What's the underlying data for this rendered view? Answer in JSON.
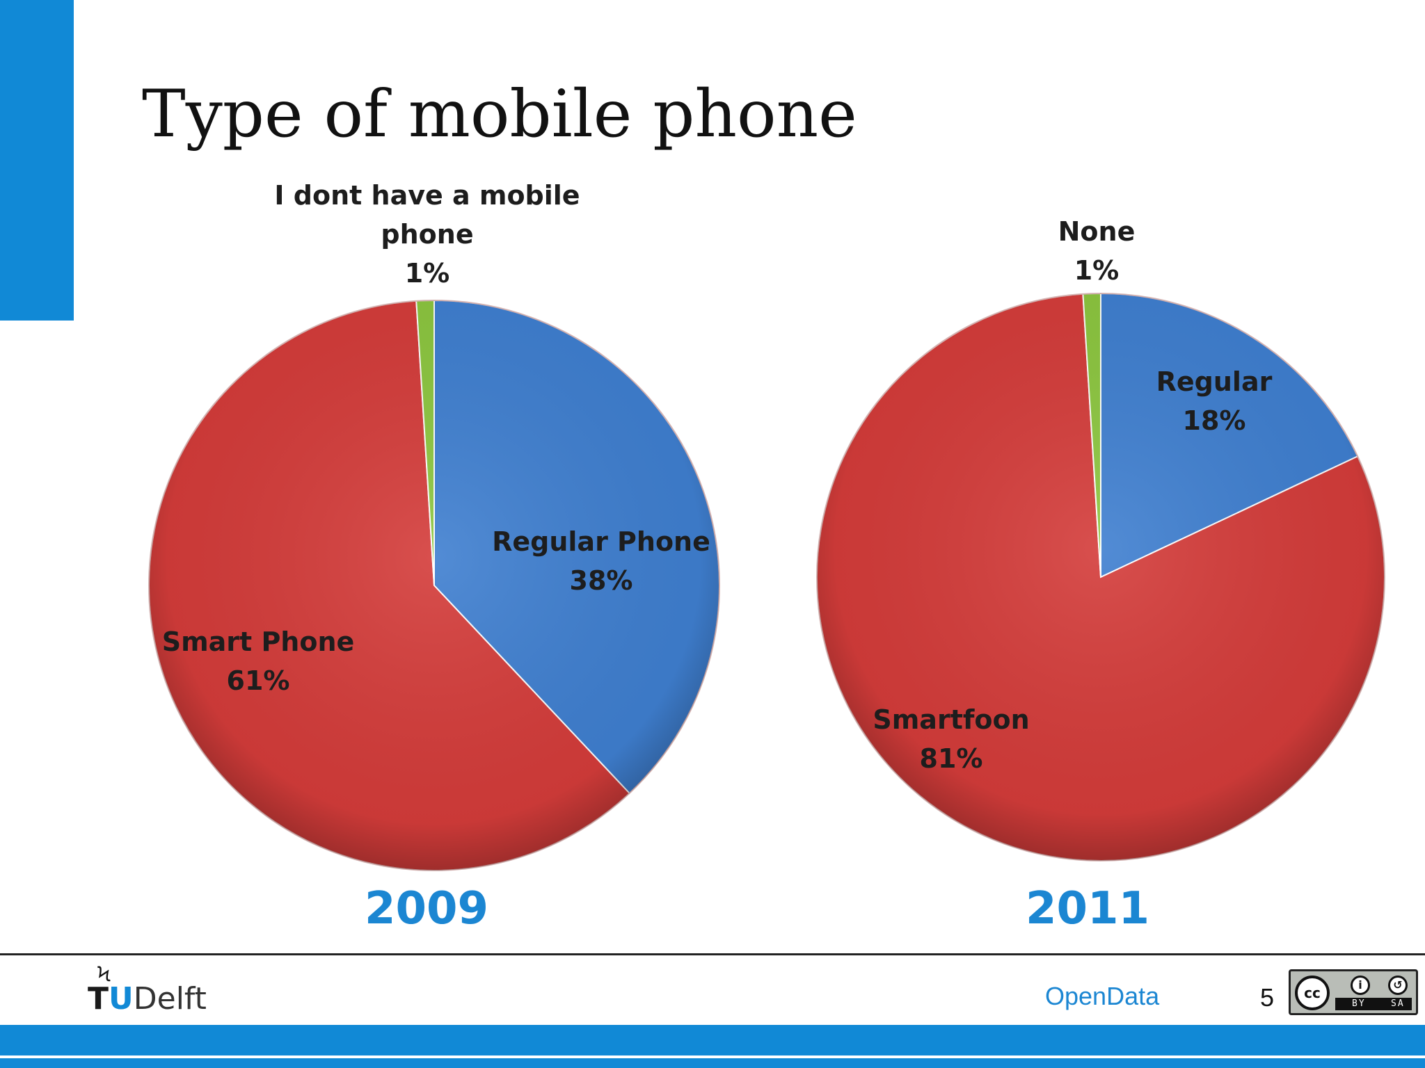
{
  "slide": {
    "title": "Type of mobile phone",
    "page_number": "5",
    "footer_text": "OpenData",
    "logo": {
      "part1": "T",
      "part2": "U",
      "part3": "Delft"
    },
    "license": {
      "cc": "cc",
      "by": "BY",
      "sa": "SA"
    },
    "colors": {
      "accent": "#1189d6",
      "regular": "#3f7fd0",
      "smart": "#d43c3a",
      "none": "#8cc63f"
    }
  },
  "chart_data": [
    {
      "type": "pie",
      "title": "2009",
      "slices": [
        {
          "label_lines": [
            "Regular Phone",
            "38%"
          ],
          "value": 38,
          "color": "#3f7fd0"
        },
        {
          "label_lines": [
            "Smart Phone",
            "61%"
          ],
          "value": 61,
          "color": "#d43c3a"
        },
        {
          "label_lines": [
            "I dont have a mobile",
            "phone",
            "1%"
          ],
          "value": 1,
          "color": "#8cc63f"
        }
      ]
    },
    {
      "type": "pie",
      "title": "2011",
      "slices": [
        {
          "label_lines": [
            "Regular",
            "18%"
          ],
          "value": 18,
          "color": "#3f7fd0"
        },
        {
          "label_lines": [
            "Smartfoon",
            "81%"
          ],
          "value": 81,
          "color": "#d43c3a"
        },
        {
          "label_lines": [
            "None",
            "1%"
          ],
          "value": 1,
          "color": "#8cc63f"
        }
      ]
    }
  ]
}
